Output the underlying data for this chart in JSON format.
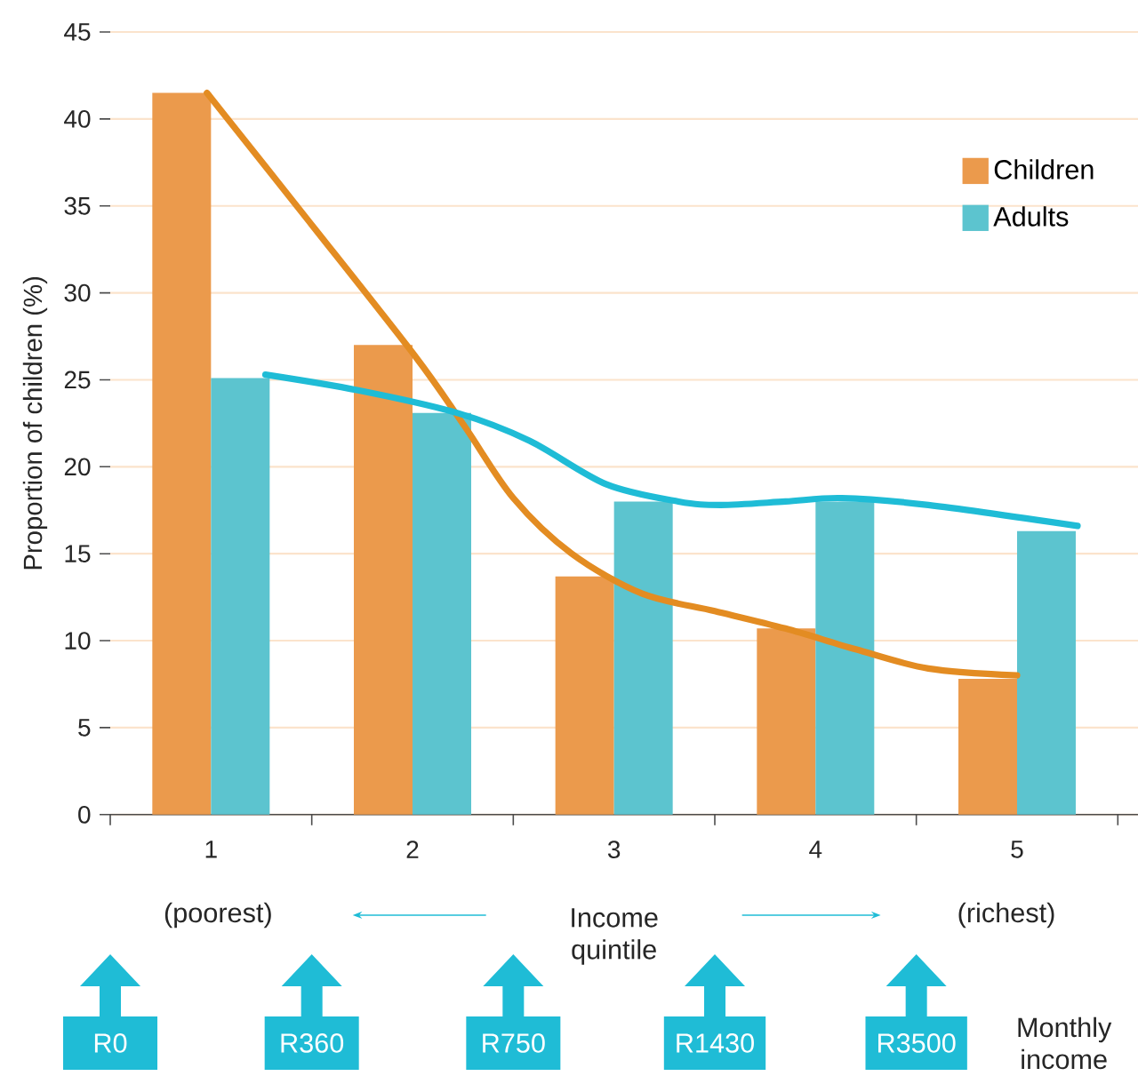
{
  "chart_data": {
    "type": "bar",
    "xlabel": "Income quintile",
    "ylabel": "Proportion of children (%)",
    "x": [
      1,
      2,
      3,
      4,
      5
    ],
    "xlim": [
      0.5,
      5.6
    ],
    "xticks": [
      1,
      2,
      3,
      4,
      5,
      {
        "value": 0.5,
        "label": null
      },
      {
        "value": 1.5,
        "label": null
      },
      {
        "value": 2.5,
        "label": null
      },
      {
        "value": 3.5,
        "label": null
      },
      {
        "value": 4.5,
        "label": null
      },
      {
        "value": 5.5,
        "label": null
      }
    ],
    "ylim": [
      0,
      45
    ],
    "yticks": [
      0,
      5,
      10,
      15,
      20,
      25,
      30,
      35,
      40,
      45
    ],
    "grid": "y",
    "legend": "top right",
    "series": [
      {
        "name": "Children",
        "color": "#eb9a4c",
        "values": [
          41.5,
          27,
          13.7,
          10.7,
          7.8
        ]
      },
      {
        "name": "Adults",
        "color": "#5cc4cf",
        "values": [
          25.1,
          23.1,
          18,
          18,
          16.3
        ]
      },
      {
        "type": "line",
        "color": "#e38c22",
        "x": [
          0.98,
          1.48,
          2.01,
          2.26,
          2.5,
          2.79,
          3.14,
          3.5,
          3.85,
          4.2,
          4.56,
          5.0
        ],
        "values": [
          41.5,
          34.2,
          26.4,
          22.3,
          18.2,
          15.0,
          12.7,
          11.7,
          10.7,
          9.5,
          8.4,
          8.0
        ]
      },
      {
        "type": "line",
        "color": "#1fbcd6",
        "x": [
          1.27,
          1.73,
          2.22,
          2.58,
          2.96,
          3.32,
          3.53,
          3.85,
          4.13,
          4.56,
          5.3
        ],
        "values": [
          25.3,
          24.4,
          23.1,
          21.5,
          19.0,
          18.0,
          17.8,
          18.0,
          18.2,
          17.8,
          16.6
        ]
      }
    ],
    "annotations": [
      "(poorest)",
      "(richest)",
      "R0",
      "R360",
      "R750",
      "R1430",
      "R3500",
      "Monthly income"
    ]
  }
}
